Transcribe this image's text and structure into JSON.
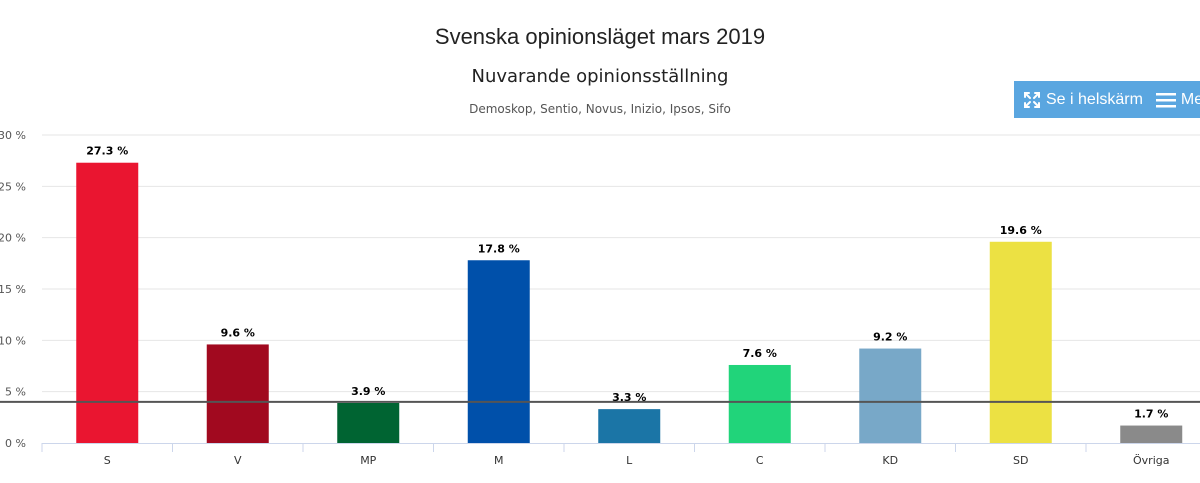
{
  "page": {
    "title": "Svenska opinionsläget mars 2019"
  },
  "toolbar": {
    "fullscreen_label": "Se i helskärm",
    "menu_label": "Meny",
    "bg_color": "#5aa6e0"
  },
  "chart_data": {
    "type": "bar",
    "title": "Nuvarande opinionsställning",
    "subtitle": "Demoskop, Sentio, Novus, Inizio, Ipsos, Sifo",
    "categories": [
      "S",
      "V",
      "MP",
      "M",
      "L",
      "C",
      "KD",
      "SD",
      "Övriga"
    ],
    "values": [
      27.3,
      9.6,
      3.9,
      17.8,
      3.3,
      7.6,
      9.2,
      19.6,
      1.7
    ],
    "data_labels": [
      "27.3 %",
      "9.6 %",
      "3.9 %",
      "17.8 %",
      "3.3 %",
      "7.6 %",
      "9.2 %",
      "19.6 %",
      "1.7 %"
    ],
    "colors": [
      "#ea1530",
      "#a1091f",
      "#006432",
      "#0050aa",
      "#1b75a6",
      "#21d47a",
      "#78a8c8",
      "#ece143",
      "#8a8a8a"
    ],
    "y_ticks": [
      0,
      5,
      10,
      15,
      20,
      25,
      30
    ],
    "y_tick_labels": [
      "0 %",
      "5 %",
      "10 %",
      "15 %",
      "20 %",
      "25 %",
      "30 %"
    ],
    "ylim": [
      0,
      30
    ],
    "threshold": 4,
    "threshold_color": "#555555",
    "grid": true,
    "xlabel": "",
    "ylabel": ""
  }
}
